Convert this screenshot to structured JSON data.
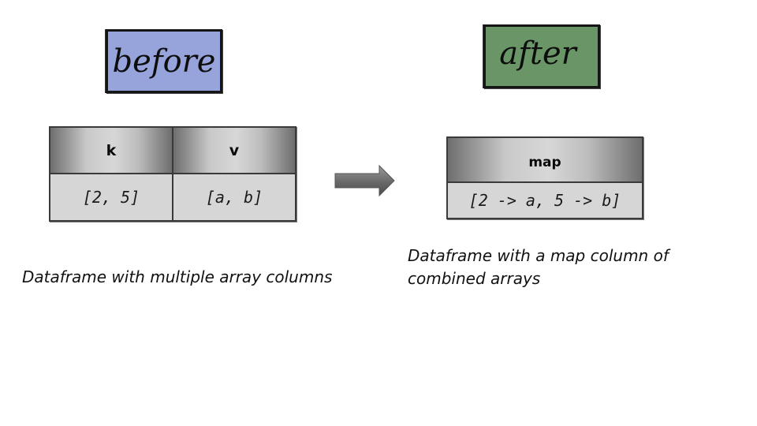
{
  "before": {
    "title": "before",
    "columns": [
      "k",
      "v"
    ],
    "row": [
      "[2, 5]",
      "[a, b]"
    ],
    "caption": "Dataframe with multiple array columns"
  },
  "after": {
    "title": "after",
    "columns": [
      "map"
    ],
    "row": [
      "[2 -> a, 5 -> b]"
    ],
    "caption": "Dataframe with a map column of combined arrays"
  },
  "colors": {
    "before_box": "#97a4dc",
    "after_box": "#6a9566",
    "header_gradient_dark": "#6e6e6e",
    "cell_background": "#d6d6d6"
  },
  "icons": {
    "transform": "right-arrow-icon"
  }
}
